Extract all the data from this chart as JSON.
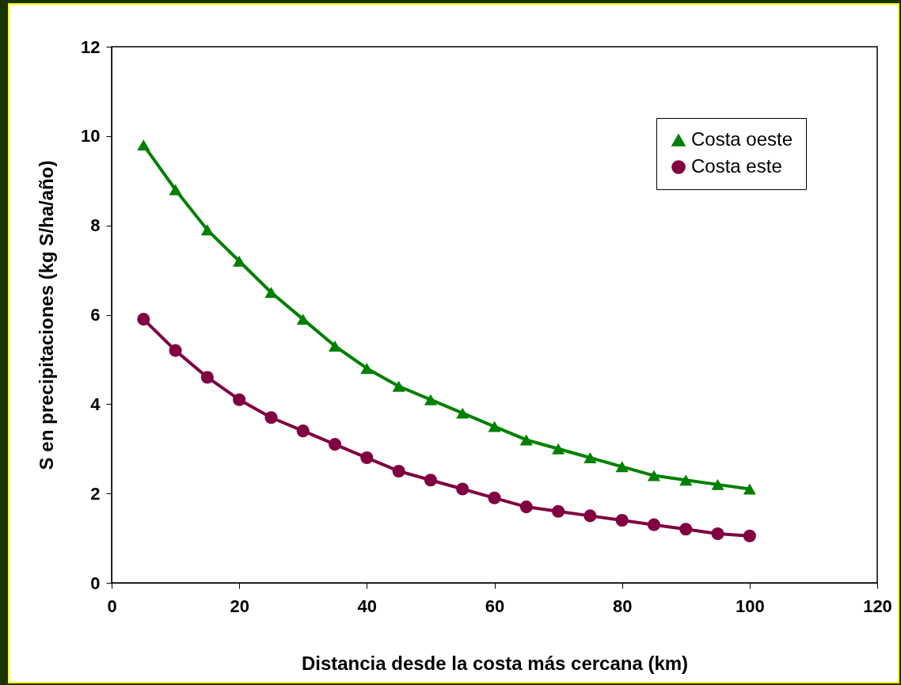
{
  "chart_data": {
    "type": "line",
    "xlabel": "Distancia desde la costa más cercana (km)",
    "ylabel": "S en precipitaciones (kg S/ha/año)",
    "x": [
      5,
      10,
      15,
      20,
      25,
      30,
      35,
      40,
      45,
      50,
      55,
      60,
      65,
      70,
      75,
      80,
      85,
      90,
      95,
      100
    ],
    "series": [
      {
        "name": "Costa oeste",
        "color": "#008000",
        "marker": "triangle",
        "values": [
          9.8,
          8.8,
          7.9,
          7.2,
          6.5,
          5.9,
          5.3,
          4.8,
          4.4,
          4.1,
          3.8,
          3.5,
          3.2,
          3.0,
          2.8,
          2.6,
          2.4,
          2.3,
          2.2,
          2.1
        ]
      },
      {
        "name": "Costa este",
        "color": "#800040",
        "marker": "circle",
        "values": [
          5.9,
          5.2,
          4.6,
          4.1,
          3.7,
          3.4,
          3.1,
          2.8,
          2.5,
          2.3,
          2.1,
          1.9,
          1.7,
          1.6,
          1.5,
          1.4,
          1.3,
          1.2,
          1.1,
          1.05
        ]
      }
    ],
    "xlim": [
      0,
      120
    ],
    "xticks": [
      0,
      20,
      40,
      60,
      80,
      100,
      120
    ],
    "ylim": [
      0,
      12
    ],
    "yticks": [
      0,
      2,
      4,
      6,
      8,
      10,
      12
    ],
    "grid": false,
    "legend": "top right",
    "line_style": "solid"
  }
}
